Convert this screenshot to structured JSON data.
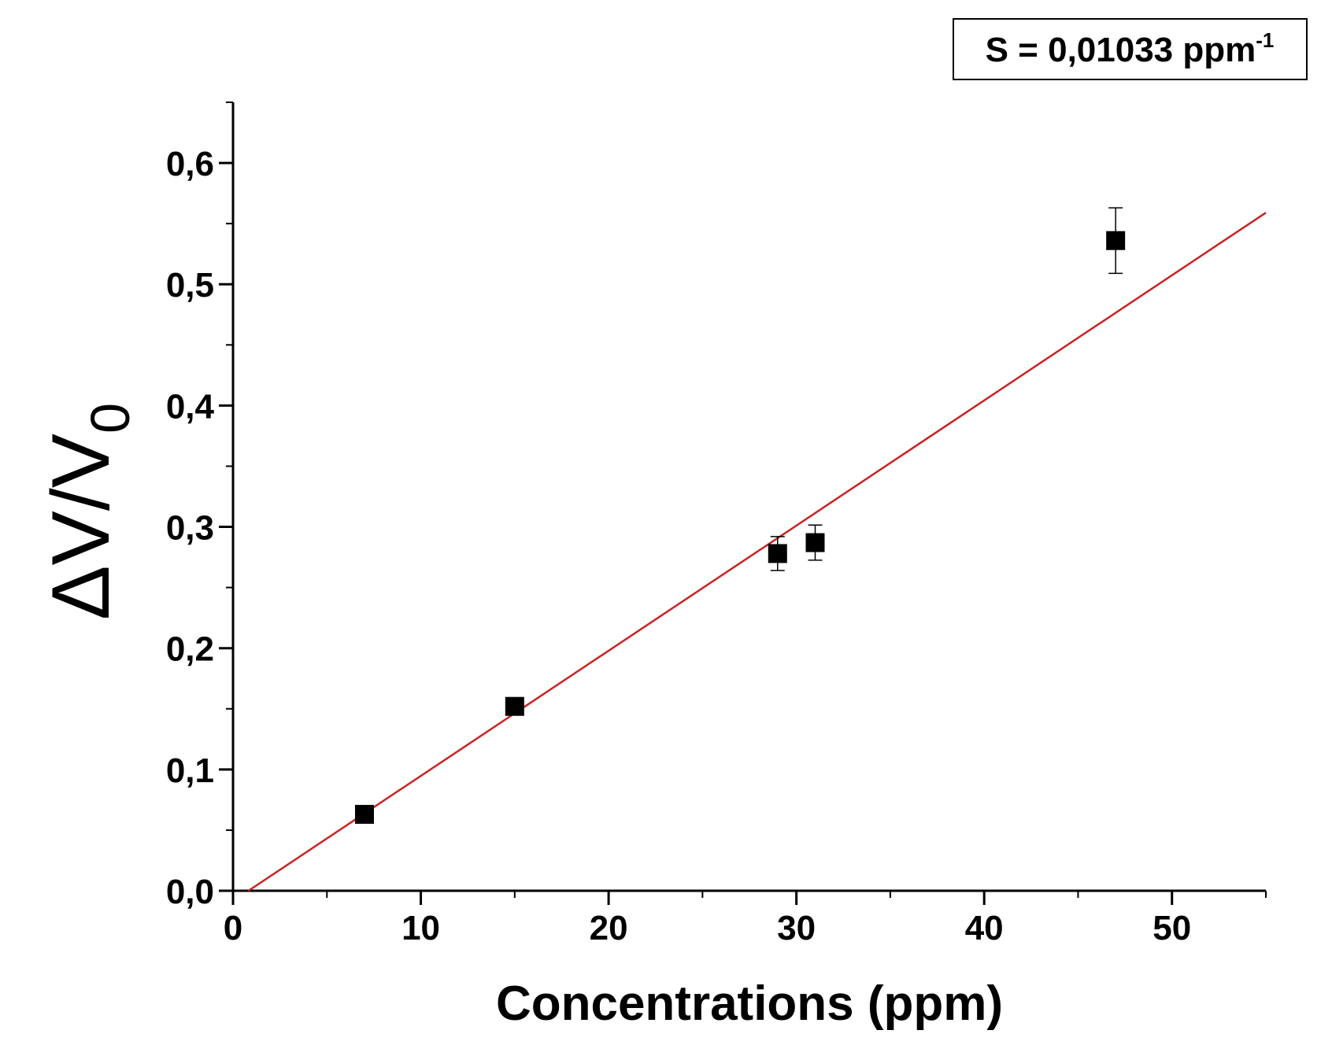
{
  "chart_data": {
    "type": "scatter",
    "x_label": "Concentrations (ppm)",
    "y_label": {
      "text": "ΔV/V",
      "subscript": "0"
    },
    "annotation": {
      "text": "S = 0,01033 ppm",
      "superscript": "-1"
    },
    "x": [
      7,
      15,
      29,
      31,
      47
    ],
    "series": [
      {
        "values": [
          0.063,
          0.152,
          0.278,
          0.287,
          0.536
        ],
        "errors": [
          0.004,
          0.004,
          0.014,
          0.0145,
          0.027
        ],
        "color": "#000000"
      }
    ],
    "fit": {
      "x": [
        0.82,
        55
      ],
      "values": [
        0,
        0.559
      ],
      "color": "#cc2222"
    },
    "xlim": [
      0,
      55
    ],
    "ylim": [
      0,
      0.65
    ],
    "xticks": [
      0,
      10,
      20,
      30,
      40,
      50
    ],
    "xminorticks": [
      5,
      15,
      25,
      35,
      45,
      55
    ],
    "yticks": [
      {
        "value": 0,
        "label": "0,0"
      },
      {
        "value": 0.1,
        "label": "0,1"
      },
      {
        "value": 0.2,
        "label": "0,2"
      },
      {
        "value": 0.3,
        "label": "0,3"
      },
      {
        "value": 0.4,
        "label": "0,4"
      },
      {
        "value": 0.5,
        "label": "0,5"
      },
      {
        "value": 0.6,
        "label": "0,6"
      }
    ],
    "yminorticks": [
      0.05,
      0.15,
      0.25,
      0.35,
      0.45,
      0.55,
      0.65
    ]
  }
}
